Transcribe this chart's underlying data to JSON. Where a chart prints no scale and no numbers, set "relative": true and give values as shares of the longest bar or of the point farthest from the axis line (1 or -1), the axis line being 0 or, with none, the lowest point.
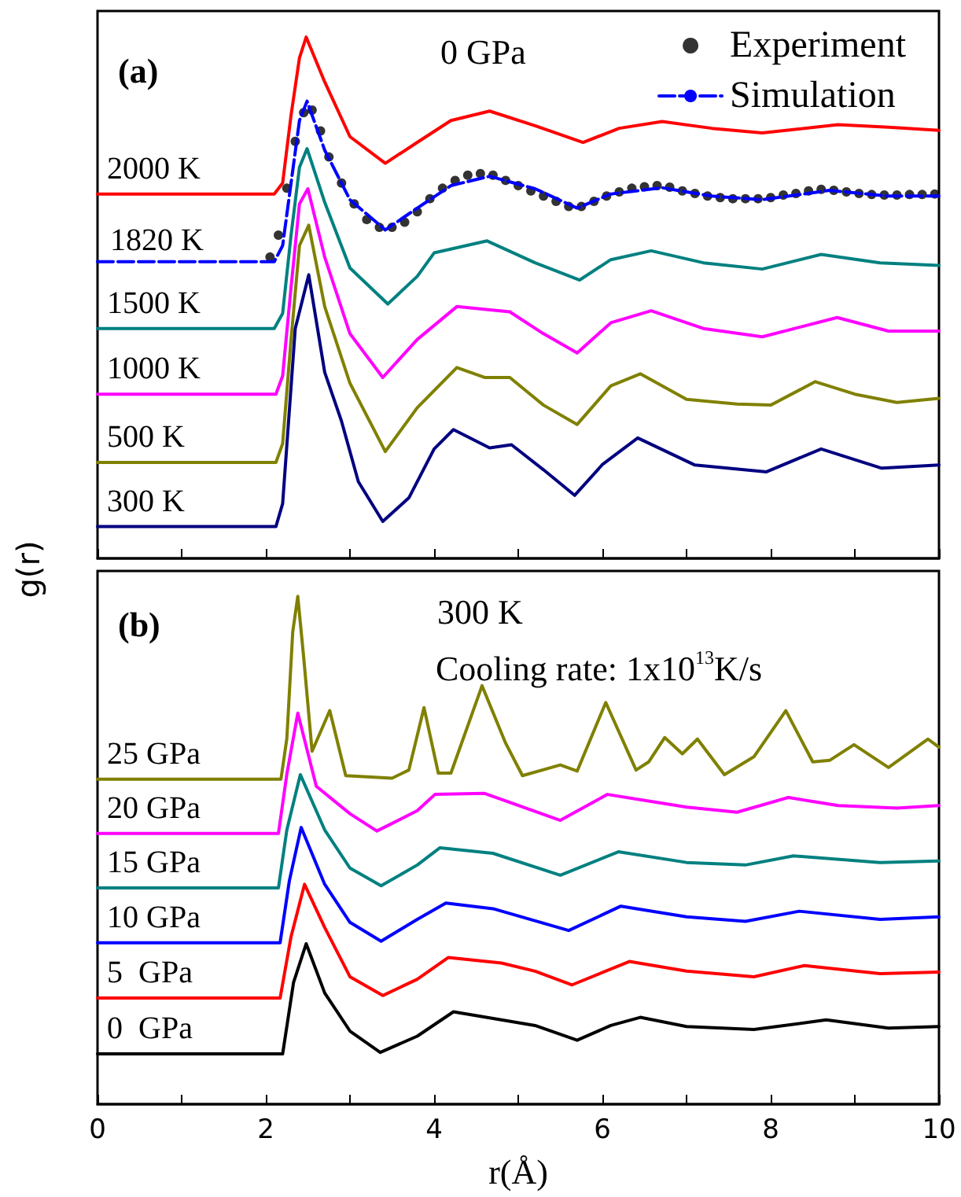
{
  "chart_data": [
    {
      "type": "line",
      "relative": true,
      "ylabel": "g(r)",
      "annotations": [
        "(a)",
        "0 GPa",
        {
          "text": "1820 K",
          "x": 0.15,
          "y": 0.58
        }
      ],
      "legend": "top right",
      "tick_labels": false,
      "xlim": [
        0,
        10
      ],
      "xticks": [
        {
          "value": 0,
          "label": null
        },
        {
          "value": 1,
          "label": null
        },
        {
          "value": 2,
          "label": null
        },
        {
          "value": 3,
          "label": null
        },
        {
          "value": 4,
          "label": null
        },
        {
          "value": 5,
          "label": null
        },
        {
          "value": 6,
          "label": null
        },
        {
          "value": 7,
          "label": null
        },
        {
          "value": 8,
          "label": null
        },
        {
          "value": 9,
          "label": null
        },
        {
          "value": 10,
          "label": null
        }
      ],
      "marker": "none",
      "line_style": "solid",
      "series": [
        {
          "name": "2000 K",
          "color": "#ff0000",
          "x": [
            0,
            2.1,
            2.2,
            2.3,
            2.4,
            2.48,
            2.7,
            3.0,
            3.42,
            3.8,
            4.2,
            4.66,
            5.2,
            5.77,
            6.2,
            6.71,
            7.3,
            7.9,
            8.8,
            9.4,
            10
          ],
          "values": [
            0.699,
            0.699,
            0.72,
            0.85,
            0.96,
            1.0,
            0.914,
            0.809,
            0.758,
            0.798,
            0.84,
            0.858,
            0.83,
            0.798,
            0.825,
            0.838,
            0.825,
            0.816,
            0.832,
            0.827,
            0.821
          ]
        },
        {
          "name": "Simulation",
          "color": "#0000ff",
          "line_style": "dashed",
          "x": [
            0,
            2.1,
            2.2,
            2.3,
            2.4,
            2.49,
            2.7,
            3.0,
            3.42,
            3.8,
            4.2,
            4.66,
            5.2,
            5.7,
            6.1,
            6.71,
            7.3,
            7.9,
            8.7,
            9.4,
            10
          ],
          "values": [
            0.569,
            0.569,
            0.6,
            0.72,
            0.84,
            0.877,
            0.783,
            0.688,
            0.63,
            0.672,
            0.715,
            0.733,
            0.709,
            0.672,
            0.699,
            0.711,
            0.695,
            0.688,
            0.706,
            0.695,
            0.695
          ]
        },
        {
          "name": "Experiment",
          "type": "scatter",
          "marker": "circle",
          "color": "#000000",
          "x": [
            2.05,
            2.15,
            2.25,
            2.35,
            2.45,
            2.55,
            2.65,
            2.75,
            2.9,
            3.05,
            3.2,
            3.35,
            3.5,
            3.65,
            3.8,
            3.95,
            4.1,
            4.25,
            4.4,
            4.55,
            4.7,
            4.85,
            5.0,
            5.15,
            5.3,
            5.45,
            5.6,
            5.75,
            5.9,
            6.05,
            6.2,
            6.35,
            6.5,
            6.65,
            6.8,
            6.95,
            7.1,
            7.25,
            7.4,
            7.55,
            7.7,
            7.85,
            8.0,
            8.15,
            8.3,
            8.45,
            8.6,
            8.75,
            8.9,
            9.05,
            9.2,
            9.35,
            9.5,
            9.65,
            9.8,
            9.95
          ],
          "values": [
            0.578,
            0.62,
            0.71,
            0.8,
            0.855,
            0.86,
            0.82,
            0.77,
            0.72,
            0.68,
            0.65,
            0.635,
            0.635,
            0.645,
            0.665,
            0.69,
            0.71,
            0.725,
            0.735,
            0.738,
            0.735,
            0.725,
            0.715,
            0.705,
            0.695,
            0.685,
            0.675,
            0.675,
            0.685,
            0.695,
            0.703,
            0.71,
            0.713,
            0.715,
            0.712,
            0.705,
            0.7,
            0.695,
            0.692,
            0.69,
            0.69,
            0.69,
            0.692,
            0.697,
            0.7,
            0.705,
            0.708,
            0.706,
            0.703,
            0.7,
            0.698,
            0.697,
            0.697,
            0.698,
            0.698,
            0.699
          ]
        },
        {
          "name": "1500 K",
          "color": "#008080",
          "x": [
            0,
            2.1,
            2.2,
            2.3,
            2.4,
            2.49,
            2.7,
            3.0,
            3.45,
            3.8,
            4.0,
            4.63,
            5.2,
            5.73,
            6.1,
            6.58,
            7.2,
            7.9,
            8.6,
            9.3,
            10
          ],
          "values": [
            0.441,
            0.441,
            0.47,
            0.62,
            0.75,
            0.786,
            0.683,
            0.557,
            0.488,
            0.541,
            0.586,
            0.609,
            0.567,
            0.534,
            0.573,
            0.59,
            0.567,
            0.555,
            0.583,
            0.567,
            0.562
          ]
        },
        {
          "name": "1000 K",
          "color": "#ff00ff",
          "x": [
            0,
            2.12,
            2.2,
            2.3,
            2.4,
            2.5,
            2.7,
            3.0,
            3.39,
            3.8,
            4.27,
            4.9,
            5.3,
            5.7,
            6.1,
            6.58,
            7.2,
            7.9,
            8.79,
            9.4,
            10
          ],
          "values": [
            0.315,
            0.315,
            0.35,
            0.52,
            0.68,
            0.709,
            0.578,
            0.431,
            0.347,
            0.42,
            0.483,
            0.473,
            0.431,
            0.394,
            0.452,
            0.475,
            0.441,
            0.425,
            0.462,
            0.436,
            0.436
          ]
        },
        {
          "name": "500 K",
          "color": "#808000",
          "x": [
            0,
            2.12,
            2.2,
            2.3,
            2.4,
            2.51,
            2.7,
            3.0,
            3.42,
            3.8,
            4.27,
            4.6,
            4.9,
            5.3,
            5.7,
            6.1,
            6.45,
            7.0,
            7.6,
            8.0,
            8.53,
            9.0,
            9.5,
            10
          ],
          "values": [
            0.184,
            0.184,
            0.22,
            0.42,
            0.6,
            0.639,
            0.483,
            0.336,
            0.205,
            0.289,
            0.366,
            0.347,
            0.347,
            0.294,
            0.257,
            0.331,
            0.354,
            0.305,
            0.296,
            0.294,
            0.339,
            0.315,
            0.299,
            0.307
          ]
        },
        {
          "name": "300 K",
          "color": "#000080",
          "x": [
            0,
            2.12,
            2.2,
            2.35,
            2.51,
            2.7,
            2.9,
            3.1,
            3.39,
            3.7,
            4.0,
            4.23,
            4.66,
            4.92,
            5.3,
            5.67,
            6.0,
            6.42,
            7.1,
            7.95,
            8.6,
            9.32,
            10
          ],
          "values": [
            0.061,
            0.061,
            0.105,
            0.441,
            0.544,
            0.357,
            0.263,
            0.147,
            0.071,
            0.116,
            0.21,
            0.247,
            0.212,
            0.218,
            0.17,
            0.121,
            0.18,
            0.231,
            0.179,
            0.166,
            0.21,
            0.173,
            0.179
          ]
        }
      ]
    },
    {
      "type": "line",
      "relative": true,
      "xlabel": "r(Å)",
      "annotations": [
        "(b)",
        "300 K",
        "Cooling rate: 1x10$^{13}$K/s"
      ],
      "tick_labels": "x",
      "xlim": [
        0,
        10
      ],
      "xticks": [
        0,
        {
          "value": 1,
          "label": null
        },
        2,
        {
          "value": 3,
          "label": null
        },
        4,
        {
          "value": 5,
          "label": null
        },
        6,
        {
          "value": 7,
          "label": null
        },
        8,
        {
          "value": 9,
          "label": null
        },
        10
      ],
      "marker": "none",
      "line_style": "solid",
      "series": [
        {
          "name": "25 GPa",
          "color": "#808000",
          "x": [
            0,
            2.18,
            2.25,
            2.32,
            2.38,
            2.45,
            2.55,
            2.76,
            2.95,
            3.5,
            3.7,
            3.88,
            4.05,
            4.2,
            4.57,
            4.85,
            5.05,
            5.5,
            5.7,
            6.04,
            6.4,
            6.55,
            6.74,
            6.95,
            7.13,
            7.45,
            7.8,
            8.18,
            8.5,
            8.7,
            8.99,
            9.4,
            9.87,
            10
          ],
          "values": [
            0.64,
            0.64,
            0.72,
            0.93,
            1.0,
            0.88,
            0.695,
            0.775,
            0.647,
            0.642,
            0.658,
            0.781,
            0.652,
            0.652,
            0.824,
            0.711,
            0.647,
            0.668,
            0.656,
            0.791,
            0.658,
            0.674,
            0.722,
            0.69,
            0.719,
            0.649,
            0.684,
            0.775,
            0.674,
            0.677,
            0.708,
            0.663,
            0.719,
            0.703
          ]
        },
        {
          "name": "20 GPa",
          "color": "#ff00ff",
          "x": [
            0,
            2.15,
            2.25,
            2.38,
            2.6,
            3.0,
            3.32,
            3.8,
            4.01,
            4.6,
            5.5,
            6.06,
            7.0,
            7.6,
            8.21,
            8.8,
            9.5,
            10
          ],
          "values": [
            0.533,
            0.533,
            0.65,
            0.77,
            0.626,
            0.572,
            0.538,
            0.578,
            0.61,
            0.612,
            0.559,
            0.61,
            0.585,
            0.575,
            0.604,
            0.588,
            0.583,
            0.588
          ]
        },
        {
          "name": "15 GPa",
          "color": "#008080",
          "x": [
            0,
            2.15,
            2.25,
            2.41,
            2.7,
            3.0,
            3.37,
            3.8,
            4.07,
            4.7,
            5.5,
            6.19,
            7.0,
            7.7,
            8.27,
            9.3,
            10
          ],
          "values": [
            0.426,
            0.426,
            0.54,
            0.649,
            0.54,
            0.465,
            0.43,
            0.471,
            0.505,
            0.494,
            0.451,
            0.497,
            0.476,
            0.471,
            0.489,
            0.476,
            0.479
          ]
        },
        {
          "name": "10 GPa",
          "color": "#0000ff",
          "x": [
            0,
            2.17,
            2.28,
            2.42,
            2.7,
            3.0,
            3.37,
            3.8,
            4.14,
            4.7,
            5.6,
            6.22,
            7.0,
            7.7,
            8.34,
            9.3,
            10
          ],
          "values": [
            0.318,
            0.318,
            0.44,
            0.545,
            0.433,
            0.358,
            0.321,
            0.364,
            0.396,
            0.385,
            0.342,
            0.39,
            0.369,
            0.36,
            0.38,
            0.364,
            0.369
          ]
        },
        {
          "name": "5  GPa",
          "color": "#ff0000",
          "x": [
            0,
            2.17,
            2.3,
            2.46,
            2.7,
            3.0,
            3.39,
            3.8,
            4.17,
            4.8,
            5.2,
            5.64,
            6.32,
            7.0,
            7.8,
            8.4,
            9.3,
            10
          ],
          "values": [
            0.209,
            0.209,
            0.33,
            0.433,
            0.348,
            0.251,
            0.214,
            0.246,
            0.289,
            0.278,
            0.262,
            0.235,
            0.281,
            0.262,
            0.251,
            0.273,
            0.257,
            0.26
          ]
        },
        {
          "name": "0  GPa",
          "color": "#000000",
          "x": [
            0,
            2.2,
            2.33,
            2.48,
            2.7,
            3.0,
            3.36,
            3.8,
            4.23,
            4.8,
            5.2,
            5.7,
            6.1,
            6.45,
            7.0,
            7.8,
            8.66,
            9.4,
            10
          ],
          "values": [
            0.099,
            0.099,
            0.24,
            0.316,
            0.219,
            0.144,
            0.102,
            0.134,
            0.182,
            0.166,
            0.155,
            0.126,
            0.155,
            0.171,
            0.153,
            0.147,
            0.166,
            0.15,
            0.153
          ]
        }
      ]
    }
  ]
}
